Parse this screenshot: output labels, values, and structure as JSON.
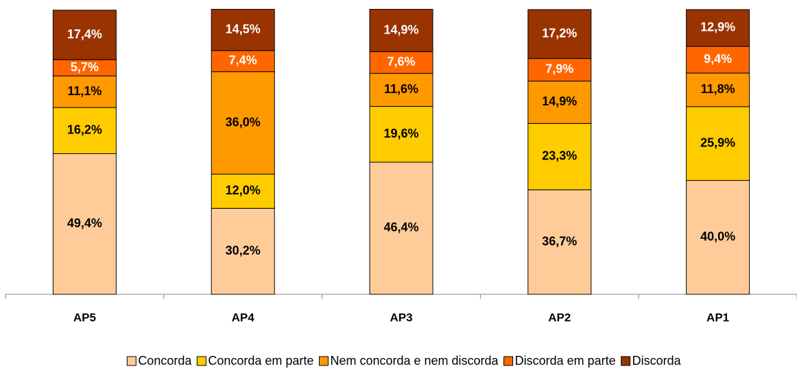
{
  "chart_data": {
    "type": "stacked_bar",
    "categories": [
      "AP5",
      "AP4",
      "AP3",
      "AP2",
      "AP1"
    ],
    "ylim": [
      0,
      100
    ],
    "series": [
      {
        "name": "Concorda",
        "color": "#FFCC99",
        "label_color": "#000000",
        "values": [
          49.4,
          30.2,
          46.4,
          36.7,
          40.0
        ],
        "value_labels": [
          "49,4%",
          "30,2%",
          "46,4%",
          "36,7%",
          "40,0%"
        ]
      },
      {
        "name": "Concorda em parte",
        "color": "#FFCC00",
        "label_color": "#000000",
        "values": [
          16.2,
          12.0,
          19.6,
          23.3,
          25.9
        ],
        "value_labels": [
          "16,2%",
          "12,0%",
          "19,6%",
          "23,3%",
          "25,9%"
        ]
      },
      {
        "name": "Nem concorda e nem discorda",
        "color": "#FF9900",
        "label_color": "#000000",
        "values": [
          11.1,
          36.0,
          11.6,
          14.9,
          11.8
        ],
        "value_labels": [
          "11,1%",
          "36,0%",
          "11,6%",
          "14,9%",
          "11,8%"
        ]
      },
      {
        "name": "Discorda em parte",
        "color": "#FF6600",
        "label_color": "#ffffff",
        "values": [
          5.7,
          7.4,
          7.6,
          7.9,
          9.4
        ],
        "value_labels": [
          "5,7%",
          "7,4%",
          "7,6%",
          "7,9%",
          "9,4%"
        ]
      },
      {
        "name": "Discorda",
        "color": "#993300",
        "label_color": "#ffffff",
        "values": [
          17.4,
          14.5,
          14.9,
          17.2,
          12.9
        ],
        "value_labels": [
          "17,4%",
          "14,5%",
          "14,9%",
          "17,2%",
          "12,9%"
        ]
      }
    ]
  }
}
